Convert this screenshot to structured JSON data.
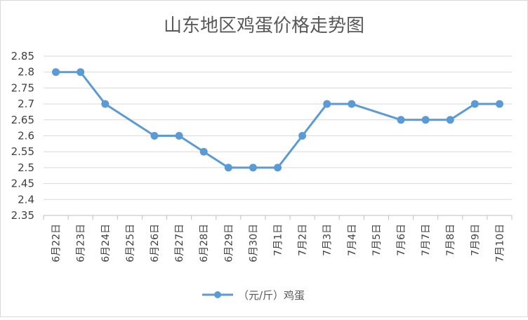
{
  "chart_data": {
    "type": "line",
    "title": "山东地区鸡蛋价格走势图",
    "xlabel": "",
    "ylabel": "",
    "categories": [
      "6月22日",
      "6月23日",
      "6月24日",
      "6月25日",
      "6月26日",
      "6月27日",
      "6月28日",
      "6月29日",
      "6月30日",
      "7月1日",
      "7月2日",
      "7月3日",
      "7月4日",
      "7月5日",
      "7月6日",
      "7月7日",
      "7月8日",
      "7月9日",
      "7月10日"
    ],
    "series": [
      {
        "name": "（元/斤）鸡蛋",
        "color": "#5b9bd5",
        "values": [
          2.8,
          2.8,
          2.7,
          null,
          2.6,
          2.6,
          2.55,
          2.5,
          2.5,
          2.5,
          2.6,
          2.7,
          2.7,
          null,
          2.65,
          2.65,
          2.65,
          2.7,
          2.7
        ]
      }
    ],
    "ylim": [
      2.35,
      2.85
    ],
    "ytick_step": 0.05,
    "yticks": [
      "2.35",
      "2.4",
      "2.45",
      "2.5",
      "2.55",
      "2.6",
      "2.65",
      "2.7",
      "2.75",
      "2.8",
      "2.85"
    ],
    "grid": true,
    "legend_position": "bottom"
  }
}
